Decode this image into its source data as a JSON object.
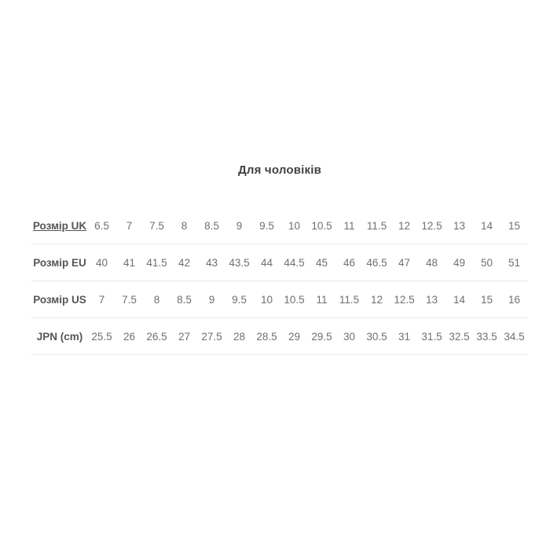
{
  "chart_data": {
    "type": "table",
    "title": "Для чоловіків",
    "rows": [
      {
        "key": "uk",
        "label": "Розмір UK",
        "link": true,
        "values": [
          "6.5",
          "7",
          "7.5",
          "8",
          "8.5",
          "9",
          "9.5",
          "10",
          "10.5",
          "11",
          "11.5",
          "12",
          "12.5",
          "13",
          "14",
          "15"
        ]
      },
      {
        "key": "eu",
        "label": "Розмір EU",
        "link": false,
        "values": [
          "40",
          "41",
          "41.5",
          "42",
          "43",
          "43.5",
          "44",
          "44.5",
          "45",
          "46",
          "46.5",
          "47",
          "48",
          "49",
          "50",
          "51"
        ]
      },
      {
        "key": "us",
        "label": "Розмір US",
        "link": false,
        "values": [
          "7",
          "7.5",
          "8",
          "8.5",
          "9",
          "9.5",
          "10",
          "10.5",
          "11",
          "11.5",
          "12",
          "12.5",
          "13",
          "14",
          "15",
          "16"
        ]
      },
      {
        "key": "jpn",
        "label": "JPN (cm)",
        "link": false,
        "values": [
          "25.5",
          "26",
          "26.5",
          "27",
          "27.5",
          "28",
          "28.5",
          "29",
          "29.5",
          "30",
          "30.5",
          "31",
          "31.5",
          "32.5",
          "33.5",
          "34.5"
        ]
      }
    ]
  },
  "colors": {
    "page_bg": "#ffffff",
    "title": "#3f4245",
    "label": "#565656",
    "value": "#707070",
    "divider": "#e9e9e9"
  }
}
